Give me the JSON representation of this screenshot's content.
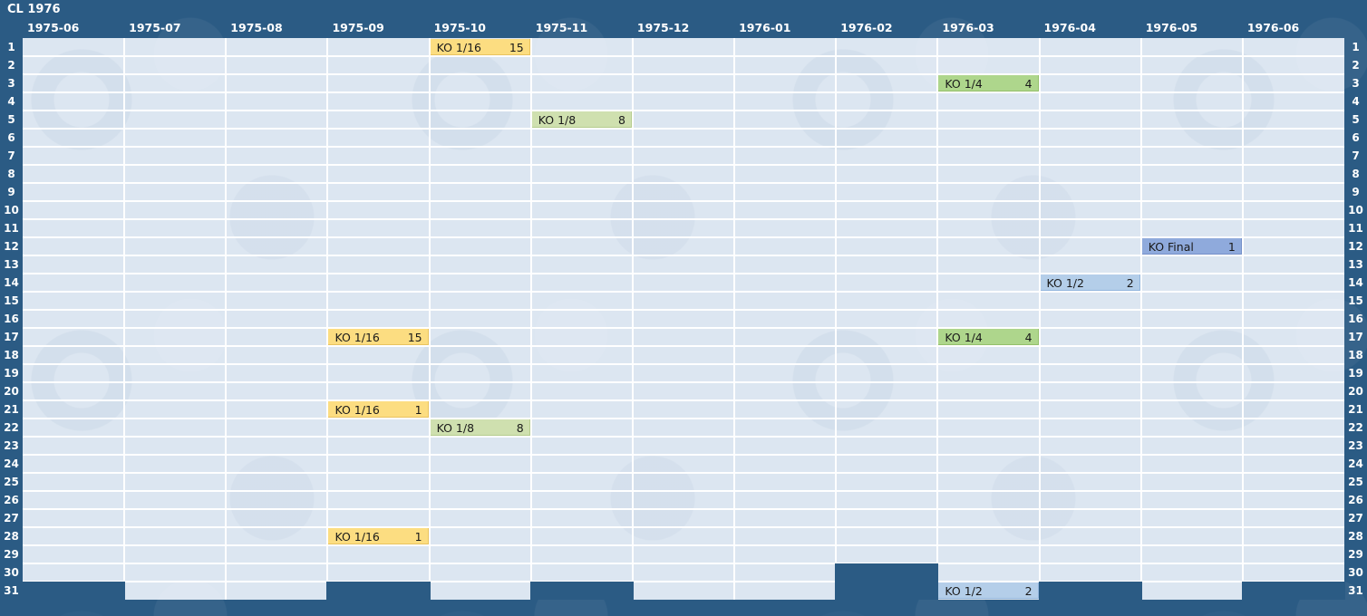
{
  "header": {
    "title": "CL 1976"
  },
  "chart_data": {
    "type": "calendar-gantt",
    "title": "CL 1976",
    "x_axis_label": "months (top header)",
    "y_axis_label": "day of month (1-31, shown on both left and right edges)",
    "months": [
      "1975-06",
      "1975-07",
      "1975-08",
      "1975-09",
      "1975-10",
      "1975-11",
      "1975-12",
      "1976-01",
      "1976-02",
      "1976-03",
      "1976-04",
      "1976-05",
      "1976-06"
    ],
    "days_in_month": {
      "1975-06": 30,
      "1975-07": 31,
      "1975-08": 31,
      "1975-09": 30,
      "1975-10": 31,
      "1975-11": 30,
      "1975-12": 31,
      "1976-01": 31,
      "1976-02": 29,
      "1976-03": 31,
      "1976-04": 30,
      "1976-05": 31,
      "1976-06": 30
    },
    "day_rows": {
      "min": 1,
      "max": 31
    },
    "events": [
      {
        "day": 1,
        "month": "1975-10",
        "label": "KO 1/16",
        "value": 15
      },
      {
        "day": 3,
        "month": "1976-03",
        "label": "KO 1/4",
        "value": 4
      },
      {
        "day": 5,
        "month": "1975-11",
        "label": "KO 1/8",
        "value": 8
      },
      {
        "day": 12,
        "month": "1976-05",
        "label": "KO Final",
        "value": 1
      },
      {
        "day": 14,
        "month": "1976-04",
        "label": "KO 1/2",
        "value": 2
      },
      {
        "day": 17,
        "month": "1975-09",
        "label": "KO 1/16",
        "value": 15
      },
      {
        "day": 17,
        "month": "1976-03",
        "label": "KO 1/4",
        "value": 4
      },
      {
        "day": 21,
        "month": "1975-09",
        "label": "KO 1/16",
        "value": 1
      },
      {
        "day": 22,
        "month": "1975-10",
        "label": "KO 1/8",
        "value": 8
      },
      {
        "day": 28,
        "month": "1975-09",
        "label": "KO 1/16",
        "value": 1
      },
      {
        "day": 31,
        "month": "1976-03",
        "label": "KO 1/2",
        "value": 2
      }
    ],
    "colors": {
      "KO 1/16": {
        "fill": "#fcdd81",
        "border": "#e9c35f"
      },
      "KO 1/8": {
        "fill": "#cfe0af",
        "border": "#b5cc8e"
      },
      "KO 1/4": {
        "fill": "#aed68c",
        "border": "#94c06a"
      },
      "KO 1/2": {
        "fill": "#b4cee9",
        "border": "#93b6dd"
      },
      "KO Final": {
        "fill": "#8faadc",
        "border": "#7590c9"
      }
    },
    "layout_colors": {
      "chrome_dark_blue": "#2b5b84",
      "cell_light_blue": "#dce6f1",
      "gridline_white": "#ffffff",
      "text_on_dark": "#ffffff",
      "text_on_bars": "#1a1a1a"
    },
    "grid": "white gridlines between every day-row and every month-column; days that do not exist in a month (e.g. Feb 30/31, day 31 of 30-day months) are filled with the dark chrome color"
  }
}
